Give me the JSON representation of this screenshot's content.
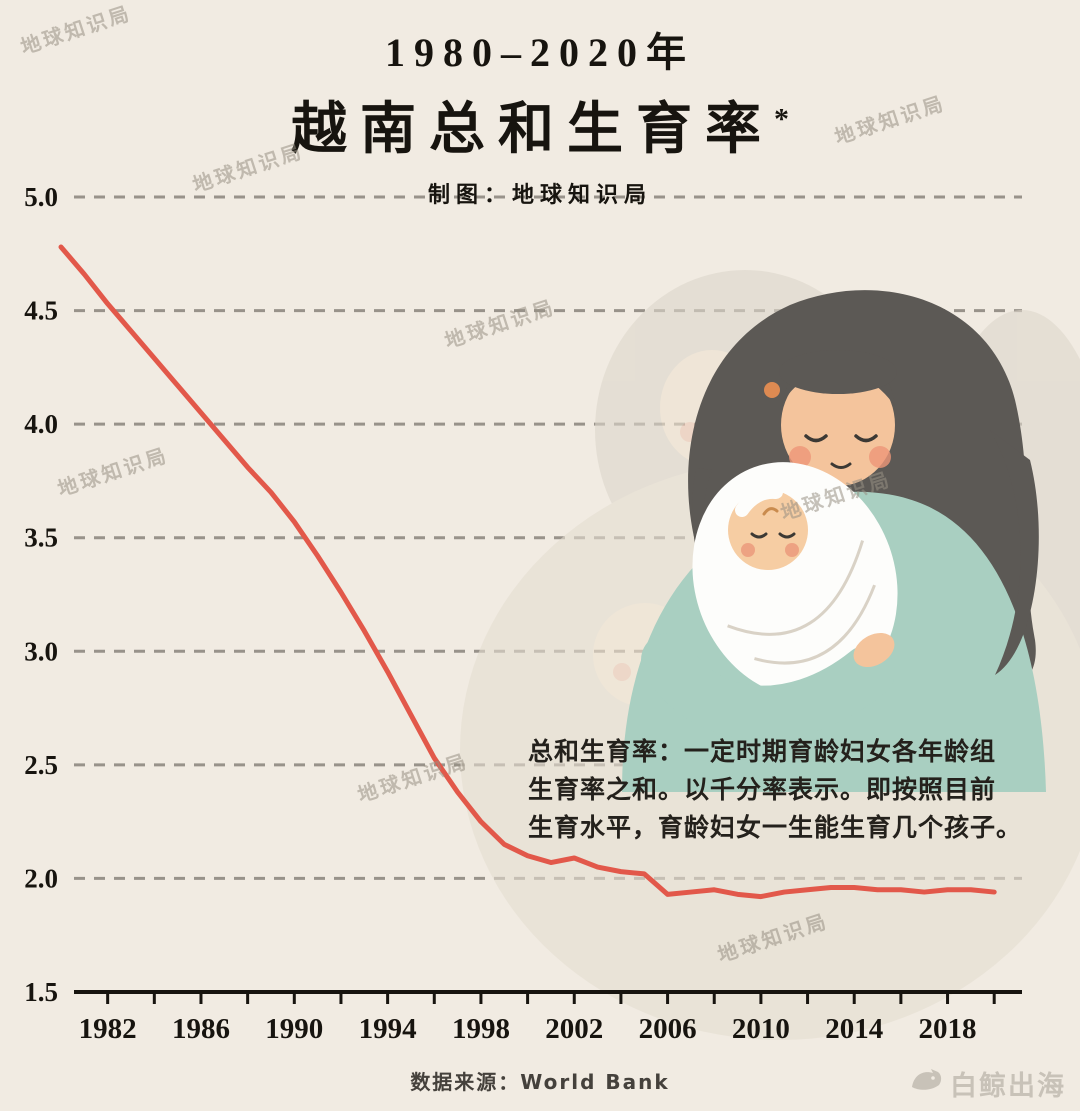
{
  "title": {
    "line1": "1980–2020年",
    "line2": "越南总和生育率",
    "asterisk": "*",
    "credit": "制图：地球知识局"
  },
  "watermark": {
    "text": "地球知识局"
  },
  "annotation": {
    "lines": [
      "总和生育率：一定时期育龄妇女各年龄组",
      "生育率之和。以千分率表示。即按照目前",
      "生育水平，育龄妇女一生能生育几个孩子。"
    ]
  },
  "footer": {
    "source": "数据来源：World Bank"
  },
  "logo": {
    "text": "白鲸出海"
  },
  "colors": {
    "background": "#f1ebe2",
    "line": "#e2584a",
    "grid": "#98928a",
    "text": "#17140f",
    "watermark": "#989083",
    "illustration_teal": "#a9cfc1",
    "illustration_hair": "#5c5955",
    "illustration_skin": "#f4c49c"
  },
  "chart_data": {
    "type": "line",
    "title": "1980–2020年 越南总和生育率",
    "series_name": "越南总和生育率",
    "x": [
      1980,
      1981,
      1982,
      1983,
      1984,
      1985,
      1986,
      1987,
      1988,
      1989,
      1990,
      1991,
      1992,
      1993,
      1994,
      1995,
      1996,
      1997,
      1998,
      1999,
      2000,
      2001,
      2002,
      2003,
      2004,
      2005,
      2006,
      2007,
      2008,
      2009,
      2010,
      2011,
      2012,
      2013,
      2014,
      2015,
      2016,
      2017,
      2018,
      2019,
      2020
    ],
    "values": [
      4.78,
      4.66,
      4.53,
      4.41,
      4.29,
      4.17,
      4.05,
      3.93,
      3.81,
      3.7,
      3.57,
      3.42,
      3.26,
      3.09,
      2.91,
      2.72,
      2.53,
      2.38,
      2.25,
      2.15,
      2.1,
      2.07,
      2.09,
      2.05,
      2.03,
      2.02,
      1.93,
      1.94,
      1.95,
      1.93,
      1.92,
      1.94,
      1.95,
      1.96,
      1.96,
      1.95,
      1.95,
      1.94,
      1.95,
      1.95,
      1.94
    ],
    "xlabel": "",
    "ylabel": "",
    "ylim": [
      1.5,
      5.0
    ],
    "yticks": [
      5.0,
      4.5,
      4.0,
      3.5,
      3.0,
      2.5,
      2.0,
      1.5
    ],
    "xticks": [
      1982,
      1986,
      1990,
      1994,
      1998,
      2002,
      2006,
      2010,
      2014,
      2018
    ],
    "grid": "dashed-horizontal",
    "legend": "none",
    "source": "World Bank"
  }
}
